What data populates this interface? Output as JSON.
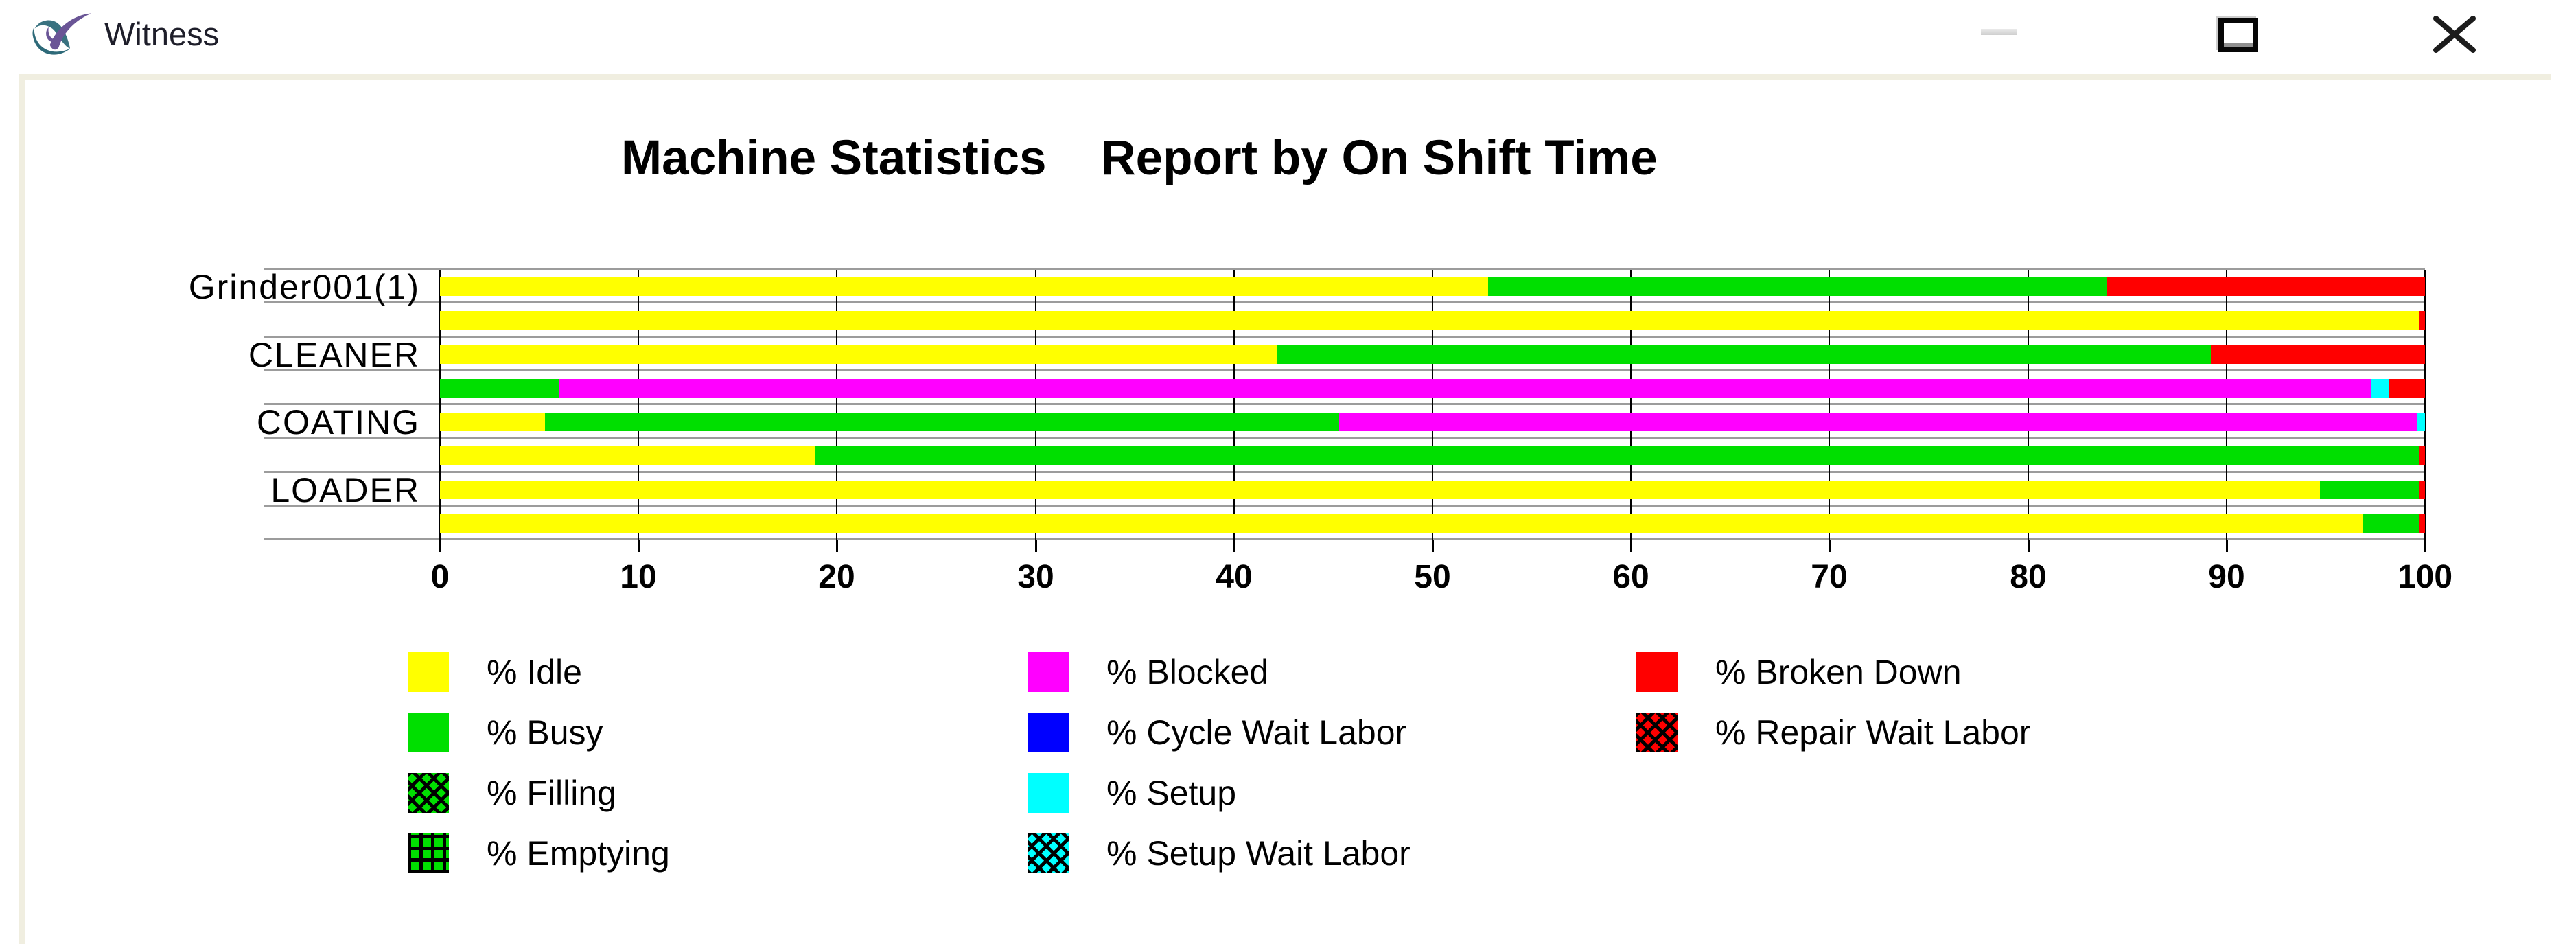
{
  "window": {
    "title": "Witness",
    "controls": {
      "minimize": "minimize-icon",
      "maximize": "maximize-icon",
      "close": "close-icon"
    }
  },
  "chart_data": {
    "type": "bar",
    "orientation": "horizontal-stacked",
    "title": "Machine Statistics    Report by On Shift Time",
    "x_axis": {
      "min": 0,
      "max": 100,
      "tick_interval": 10,
      "ticks": [
        0,
        10,
        20,
        30,
        40,
        50,
        60,
        70,
        80,
        90,
        100
      ]
    },
    "grid": true,
    "statuses": {
      "idle": {
        "label": "% Idle",
        "color": "#ffff00",
        "pattern": "solid"
      },
      "busy": {
        "label": "% Busy",
        "color": "#00df00",
        "pattern": "solid"
      },
      "filling": {
        "label": "% Filling",
        "color": "#00df00",
        "pattern": "crosshatch"
      },
      "emptying": {
        "label": "% Emptying",
        "color": "#00df00",
        "pattern": "grid"
      },
      "blocked": {
        "label": "% Blocked",
        "color": "#ff00ff",
        "pattern": "solid"
      },
      "cycle_wait_labor": {
        "label": "% Cycle Wait Labor",
        "color": "#0000ff",
        "pattern": "solid"
      },
      "setup": {
        "label": "% Setup",
        "color": "#00ffff",
        "pattern": "solid"
      },
      "setup_wait_labor": {
        "label": "% Setup Wait Labor",
        "color": "#00ffff",
        "pattern": "crosshatch"
      },
      "broken_down": {
        "label": "% Broken Down",
        "color": "#ff0000",
        "pattern": "solid"
      },
      "repair_wait_labor": {
        "label": "% Repair Wait Labor",
        "color": "#ff0000",
        "pattern": "crosshatch"
      }
    },
    "rows": [
      {
        "label": "Grinder001(1)",
        "segments": [
          {
            "status": "idle",
            "value": 52.8
          },
          {
            "status": "busy",
            "value": 31.2
          },
          {
            "status": "broken_down",
            "value": 16.0
          }
        ]
      },
      {
        "label": "",
        "segments": [
          {
            "status": "idle",
            "value": 99.7
          },
          {
            "status": "broken_down",
            "value": 0.3
          }
        ]
      },
      {
        "label": "CLEANER",
        "segments": [
          {
            "status": "idle",
            "value": 42.2
          },
          {
            "status": "busy",
            "value": 47.0
          },
          {
            "status": "broken_down",
            "value": 10.8
          }
        ]
      },
      {
        "label": "",
        "segments": [
          {
            "status": "busy",
            "value": 6.0
          },
          {
            "status": "blocked",
            "value": 91.3
          },
          {
            "status": "setup",
            "value": 0.9
          },
          {
            "status": "broken_down",
            "value": 1.8
          }
        ]
      },
      {
        "label": "COATING",
        "segments": [
          {
            "status": "idle",
            "value": 5.3
          },
          {
            "status": "busy",
            "value": 40.0
          },
          {
            "status": "blocked",
            "value": 54.3
          },
          {
            "status": "setup",
            "value": 0.4
          }
        ]
      },
      {
        "label": "",
        "segments": [
          {
            "status": "idle",
            "value": 18.9
          },
          {
            "status": "busy",
            "value": 80.8
          },
          {
            "status": "broken_down",
            "value": 0.3
          }
        ]
      },
      {
        "label": "LOADER",
        "segments": [
          {
            "status": "idle",
            "value": 94.7
          },
          {
            "status": "busy",
            "value": 5.0
          },
          {
            "status": "broken_down",
            "value": 0.3
          }
        ]
      },
      {
        "label": "",
        "segments": [
          {
            "status": "idle",
            "value": 96.9
          },
          {
            "status": "busy",
            "value": 2.8
          },
          {
            "status": "broken_down",
            "value": 0.3
          }
        ]
      }
    ],
    "legend": {
      "position": "bottom",
      "columns": [
        [
          "idle",
          "busy",
          "filling",
          "emptying"
        ],
        [
          "blocked",
          "cycle_wait_labor",
          "setup",
          "setup_wait_labor"
        ],
        [
          "broken_down",
          "repair_wait_labor"
        ]
      ]
    }
  },
  "colors": {
    "frame_beige": "#f0eee0",
    "groove_gray": "#9c9c9c",
    "logo_teal": "#2e6a79",
    "logo_purple": "#6a5596"
  }
}
